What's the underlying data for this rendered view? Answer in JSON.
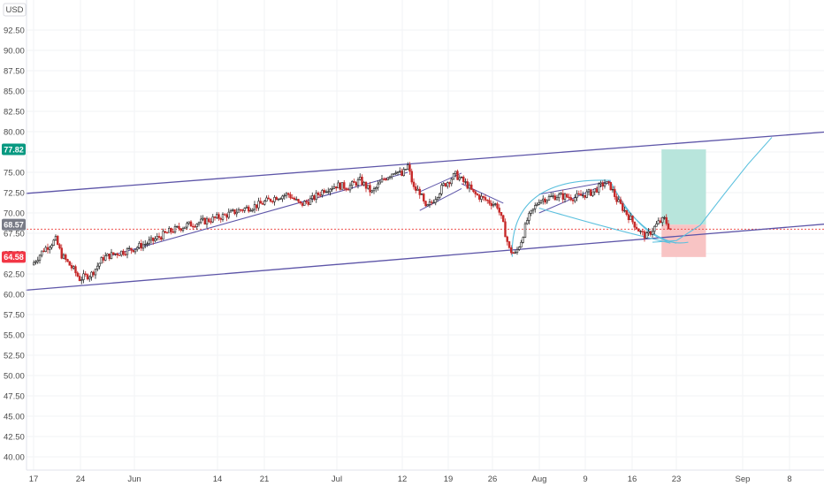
{
  "currency_label": "USD",
  "colors": {
    "up": "#26a69a",
    "down": "#ef5350",
    "candle": "#1f1f1f",
    "channel": "#5d55a8",
    "fib": "#5bc0de",
    "profit_zone": "#b8e5dc",
    "loss_zone": "#f8c4c4",
    "last_price_line": "#ef5350",
    "grid": "#f2f3f5"
  },
  "chart_data": {
    "type": "candlestick",
    "title": "",
    "xlabel": "",
    "ylabel": "",
    "ylim": [
      38.3,
      95.2
    ],
    "y_ticks": [
      40.0,
      42.5,
      45.0,
      47.5,
      50.0,
      52.5,
      55.0,
      57.5,
      60.0,
      62.5,
      65.0,
      67.5,
      70.0,
      72.5,
      75.0,
      77.5,
      80.0,
      82.5,
      85.0,
      87.5,
      90.0,
      92.5
    ],
    "y_tick_labels": [
      "40.00",
      "42.50",
      "45.00",
      "47.50",
      "50.00",
      "52.50",
      "55.00",
      "57.50",
      "60.00",
      "62.50",
      "65.00",
      "67.50",
      "70.00",
      "72.50",
      "75.00",
      "77.50",
      "80.00",
      "82.50",
      "85.00",
      "87.50",
      "90.00",
      "92.50"
    ],
    "x_tick_labels": [
      "17",
      "24",
      "Jun",
      "14",
      "21",
      "Jul",
      "12",
      "19",
      "26",
      "Aug",
      "9",
      "16",
      "23",
      "Sep",
      "8"
    ],
    "price_badges": [
      {
        "label": "77.82",
        "value": 77.82,
        "color": "#089981"
      },
      {
        "label": "68.57",
        "value": 68.57,
        "color": "#787b86"
      },
      {
        "label": "64.58",
        "value": 64.58,
        "color": "#f23645"
      }
    ],
    "last_price": 68.0,
    "price_path": [
      {
        "day": 0,
        "price": 63.6
      },
      {
        "day": 2,
        "price": 65.5
      },
      {
        "day": 4,
        "price": 66.7
      },
      {
        "day": 5,
        "price": 64.8
      },
      {
        "day": 7,
        "price": 63.0
      },
      {
        "day": 8,
        "price": 61.9
      },
      {
        "day": 10,
        "price": 62.5
      },
      {
        "day": 12,
        "price": 64.5
      },
      {
        "day": 14,
        "price": 65.0
      },
      {
        "day": 17,
        "price": 65.6
      },
      {
        "day": 20,
        "price": 66.5
      },
      {
        "day": 23,
        "price": 67.7
      },
      {
        "day": 26,
        "price": 68.5
      },
      {
        "day": 29,
        "price": 69.0
      },
      {
        "day": 32,
        "price": 69.6
      },
      {
        "day": 35,
        "price": 70.4
      },
      {
        "day": 38,
        "price": 71.0
      },
      {
        "day": 41,
        "price": 72.0
      },
      {
        "day": 43,
        "price": 72.3
      },
      {
        "day": 45,
        "price": 71.0
      },
      {
        "day": 47,
        "price": 71.7
      },
      {
        "day": 49,
        "price": 72.9
      },
      {
        "day": 51,
        "price": 73.4
      },
      {
        "day": 53,
        "price": 73.2
      },
      {
        "day": 55,
        "price": 74.0
      },
      {
        "day": 57,
        "price": 72.5
      },
      {
        "day": 59,
        "price": 74.2
      },
      {
        "day": 61,
        "price": 75.3
      },
      {
        "day": 62,
        "price": 74.6
      },
      {
        "day": 63,
        "price": 75.8
      },
      {
        "day": 64,
        "price": 73.0
      },
      {
        "day": 65,
        "price": 72.6
      },
      {
        "day": 66,
        "price": 70.5
      },
      {
        "day": 67,
        "price": 71.3
      },
      {
        "day": 69,
        "price": 73.4
      },
      {
        "day": 71,
        "price": 74.7
      },
      {
        "day": 73,
        "price": 73.4
      },
      {
        "day": 74,
        "price": 72.4
      },
      {
        "day": 76,
        "price": 71.6
      },
      {
        "day": 78,
        "price": 70.9
      },
      {
        "day": 79,
        "price": 68.5
      },
      {
        "day": 80,
        "price": 65.5
      },
      {
        "day": 81,
        "price": 64.9
      },
      {
        "day": 82,
        "price": 66.6
      },
      {
        "day": 83,
        "price": 69.1
      },
      {
        "day": 85,
        "price": 71.6
      },
      {
        "day": 88,
        "price": 72.1
      },
      {
        "day": 91,
        "price": 71.9
      },
      {
        "day": 94,
        "price": 72.6
      },
      {
        "day": 96,
        "price": 73.7
      },
      {
        "day": 97,
        "price": 73.2
      },
      {
        "day": 98,
        "price": 71.6
      },
      {
        "day": 100,
        "price": 69.6
      },
      {
        "day": 102,
        "price": 67.6
      },
      {
        "day": 103,
        "price": 67.1
      },
      {
        "day": 105,
        "price": 68.8
      },
      {
        "day": 106,
        "price": 69.2
      },
      {
        "day": 107,
        "price": 68.0
      }
    ],
    "drawings": {
      "upper_channel": [
        [
          -1,
          72.4
        ],
        [
          139,
          80.3
        ]
      ],
      "lower_channel": [
        [
          -1,
          60.5
        ],
        [
          139,
          69.0
        ]
      ],
      "support_trend": [
        [
          13,
          64.7
        ],
        [
          63,
          75.0
        ]
      ],
      "forecast_curve": [
        [
          104,
          66.4
        ],
        [
          108,
          66.6
        ],
        [
          112,
          68.5
        ],
        [
          116,
          72.3
        ],
        [
          120,
          76.0
        ],
        [
          124,
          79.3
        ]
      ],
      "position_box": {
        "entry": 68.57,
        "target": 77.82,
        "stop": 64.58,
        "from_day": 107,
        "to_day": 114
      }
    }
  }
}
